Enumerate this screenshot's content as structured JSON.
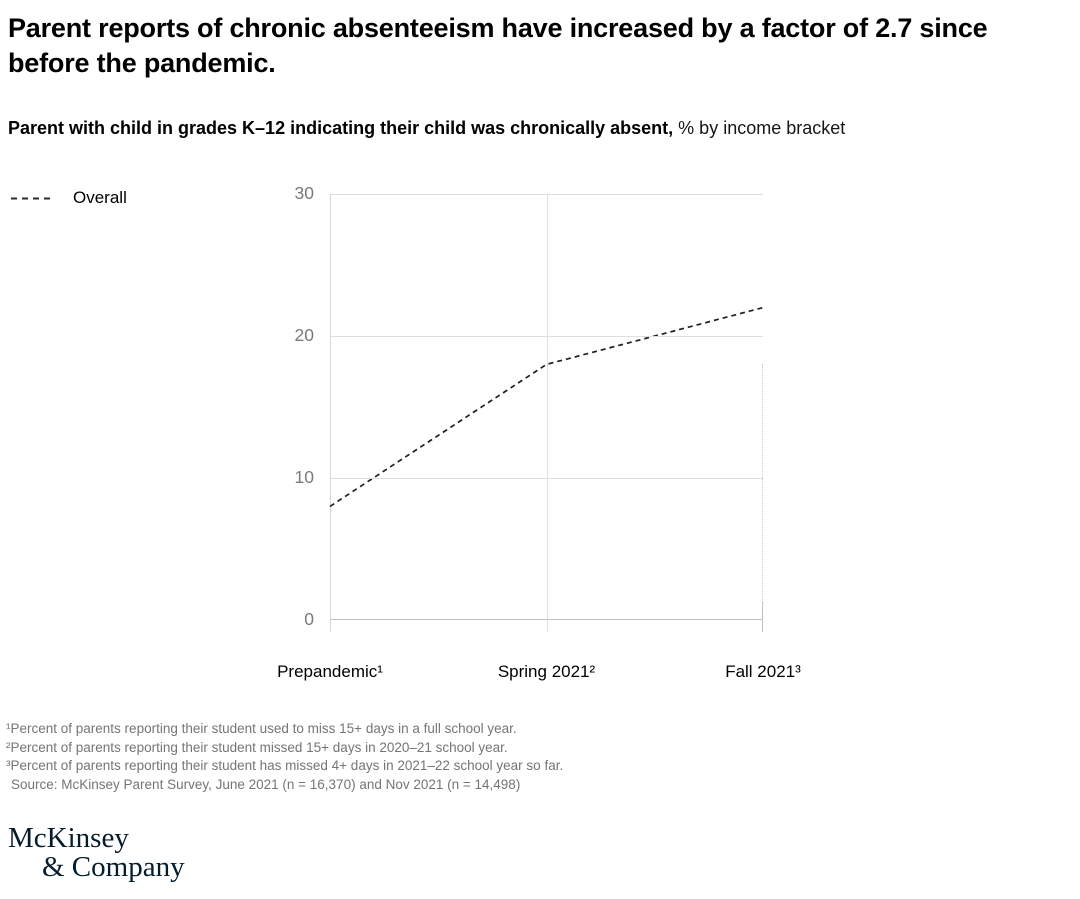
{
  "header": {
    "title_lines": [
      "Parent reports of chronic absenteeism have increased by a factor of 2.7 since",
      "before the pandemic."
    ],
    "subtitle_bold": "Parent with child in grades K–12 indicating their child was chronically absent,",
    "subtitle_regular": " % by income bracket"
  },
  "legend": {
    "label": "Overall"
  },
  "chart_data": {
    "type": "line",
    "title": "Parent with child in grades K–12 indicating their child was chronically absent, % by income bracket",
    "categories": [
      "Prepandemic¹",
      "Spring 2021²",
      "Fall 2021³"
    ],
    "series": [
      {
        "name": "Overall",
        "values": [
          8,
          18,
          22
        ],
        "line_style": "dashed",
        "color": "#1f1f1f"
      }
    ],
    "ylim": [
      0,
      30
    ],
    "yticks": [
      30,
      20,
      10,
      0
    ],
    "grid": "horizontal gridlines at 0/10/20/30, solid vertical gridline at middle category, dotted partial vertical at right edge",
    "legend_position": "top-left"
  },
  "footnotes": {
    "lines": [
      "¹Percent of parents reporting their student used to miss 15+ days in a full school year.",
      "²Percent of parents reporting their student missed 15+ days in 2020–21 school year.",
      "³Percent of parents reporting their student has missed 4+ days in 2021–22 school year so far.",
      "Source: McKinsey Parent Survey, June 2021 (n = 16,370) and Nov 2021 (n = 14,498)"
    ]
  },
  "logo": {
    "line1": "McKinsey",
    "line2": "& Company"
  },
  "appearance": {
    "line_color": "#1f1f1f",
    "gridline_color": "#dedede",
    "axis_label_color": "#7a7a7a",
    "footnote_color": "#757575",
    "logo_navy": "#051c2c"
  }
}
